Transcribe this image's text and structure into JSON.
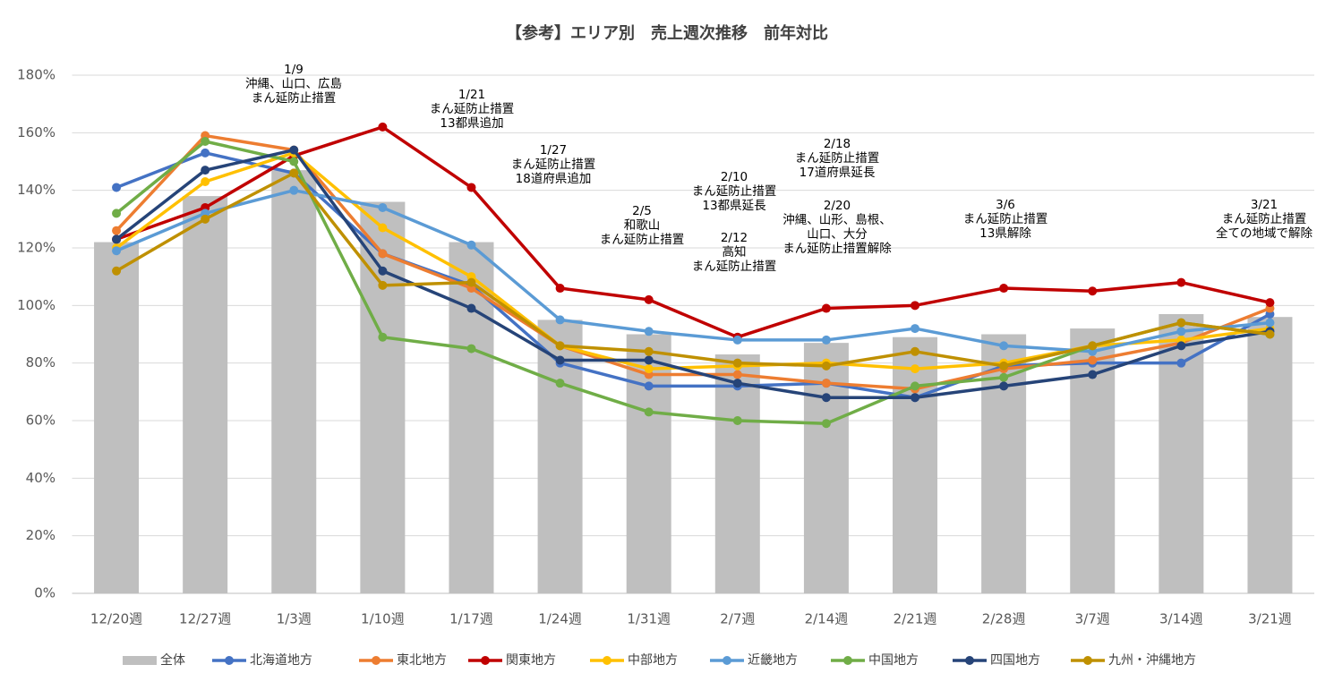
{
  "chart_data": {
    "type": "combo",
    "title": "【参考】エリア別　売上週次推移　前年対比",
    "categories": [
      "12/20週",
      "12/27週",
      "1/3週",
      "1/10週",
      "1/17週",
      "1/24週",
      "1/31週",
      "2/7週",
      "2/14週",
      "2/21週",
      "2/28週",
      "3/7週",
      "3/14週",
      "3/21週"
    ],
    "ylim": [
      0,
      180
    ],
    "yticks": [
      {
        "value": 0,
        "label": "0%"
      },
      {
        "value": 20,
        "label": "20%"
      },
      {
        "value": 40,
        "label": "40%"
      },
      {
        "value": 60,
        "label": "60%"
      },
      {
        "value": 80,
        "label": "80%"
      },
      {
        "value": 100,
        "label": "100%"
      },
      {
        "value": 120,
        "label": "120%"
      },
      {
        "value": 140,
        "label": "140%"
      },
      {
        "value": 160,
        "label": "160%"
      },
      {
        "value": 180,
        "label": "180%"
      }
    ],
    "grid": true,
    "legend": "bottom",
    "series": [
      {
        "name": "全体",
        "mark": "bar",
        "color": "#bfbfbf",
        "values": [
          122,
          138,
          147,
          136,
          122,
          95,
          90,
          83,
          87,
          89,
          90,
          92,
          97,
          96
        ]
      },
      {
        "name": "北海道地方",
        "mark": "line",
        "color": "#4472c4",
        "values": [
          141,
          153,
          146,
          118,
          107,
          80,
          72,
          72,
          73,
          68,
          79,
          80,
          80,
          97
        ]
      },
      {
        "name": "東北地方",
        "mark": "line",
        "color": "#ed7d31",
        "values": [
          126,
          159,
          154,
          118,
          106,
          86,
          76,
          76,
          73,
          71,
          78,
          81,
          87,
          99
        ]
      },
      {
        "name": "関東地方",
        "mark": "line",
        "color": "#c00000",
        "values": [
          123,
          134,
          152,
          162,
          141,
          106,
          102,
          89,
          99,
          100,
          106,
          105,
          108,
          101
        ]
      },
      {
        "name": "中部地方",
        "mark": "line",
        "color": "#ffc000",
        "values": [
          120,
          143,
          153,
          127,
          110,
          86,
          78,
          79,
          80,
          78,
          80,
          86,
          88,
          92
        ]
      },
      {
        "name": "近畿地方",
        "mark": "line",
        "color": "#5b9bd5",
        "values": [
          119,
          132,
          140,
          134,
          121,
          95,
          91,
          88,
          88,
          92,
          86,
          84,
          91,
          94
        ]
      },
      {
        "name": "中国地方",
        "mark": "line",
        "color": "#70ad47",
        "values": [
          132,
          157,
          150,
          89,
          85,
          73,
          63,
          60,
          59,
          72,
          75,
          86,
          94,
          90
        ]
      },
      {
        "name": "四国地方",
        "mark": "line",
        "color": "#264478",
        "values": [
          123,
          147,
          154,
          112,
          99,
          81,
          81,
          73,
          68,
          68,
          72,
          76,
          86,
          91
        ]
      },
      {
        "name": "九州・沖縄地方",
        "mark": "line",
        "color": "#bf9000",
        "values": [
          112,
          130,
          146,
          107,
          108,
          86,
          84,
          80,
          79,
          84,
          79,
          86,
          94,
          90
        ]
      }
    ],
    "annotations": [
      [
        "1/9",
        "沖縄、山口、広島",
        "まん延防止措置"
      ],
      [
        "1/21",
        "まん延防止措置",
        "13都県追加"
      ],
      [
        "1/27",
        "まん延防止措置",
        "18道府県追加"
      ],
      [
        "2/5",
        "和歌山",
        "まん延防止措置"
      ],
      [
        "2/10",
        "まん延防止措置",
        "13都県延長"
      ],
      [
        "2/12",
        "高知",
        "まん延防止措置"
      ],
      [
        "2/18",
        "まん延防止措置",
        "17道府県延長"
      ],
      [
        "2/20",
        "沖縄、山形、島根、",
        "山口、大分",
        "まん延防止措置解除"
      ],
      [
        "3/6",
        "まん延防止措置",
        "13県解除"
      ],
      [
        "3/21",
        "まん延防止措置",
        "全ての地域で解除"
      ]
    ]
  }
}
